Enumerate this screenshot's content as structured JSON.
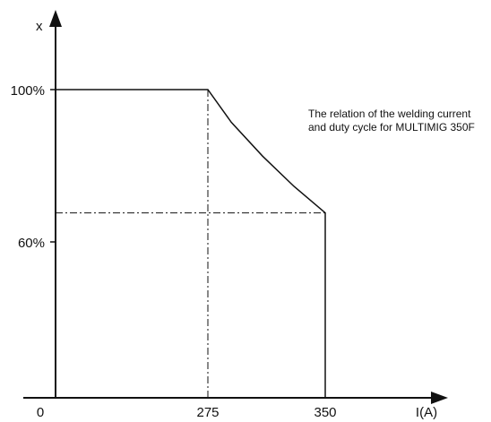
{
  "chart_data": {
    "type": "line",
    "title": "",
    "xlabel": "I(A)",
    "ylabel": "x",
    "x_ticks": [
      "0",
      "275",
      "350"
    ],
    "y_ticks": [
      "60%",
      "100%"
    ],
    "series": [
      {
        "x": [
          0,
          275,
          290,
          310,
          330,
          350,
          350
        ],
        "y": [
          100,
          100,
          89.4,
          78.4,
          68.6,
          60,
          0
        ]
      }
    ],
    "reference_lines": [
      {
        "orientation": "vertical",
        "x": 275,
        "y_range": [
          0,
          100
        ],
        "style": "dash-dot"
      },
      {
        "orientation": "horizontal",
        "y": 60,
        "x_range": [
          0,
          350
        ],
        "style": "dash-dot"
      }
    ],
    "annotation": [
      "The relation of the welding current",
      "and duty cycle for MULTIMIG 350F"
    ],
    "grid": false,
    "legend": "none"
  }
}
